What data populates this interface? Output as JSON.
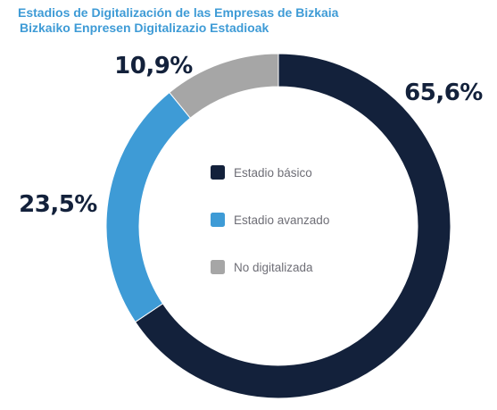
{
  "chart_data": {
    "type": "pie",
    "style": "donut",
    "title": "Estadios de Digitalización de las Empresas de Bizkaia",
    "subtitle": "Bizkaiko Enpresen Digitalizazio Estadioak",
    "categories": [
      "Estadio básico",
      "Estadio avanzado",
      "No digitalizada"
    ],
    "values": [
      65.6,
      23.5,
      10.9
    ],
    "labels": [
      "65,6%",
      "23,5%",
      "10,9%"
    ],
    "colors": [
      "#13213b",
      "#3e9bd6",
      "#a6a6a6"
    ],
    "legend_placement": "center"
  }
}
